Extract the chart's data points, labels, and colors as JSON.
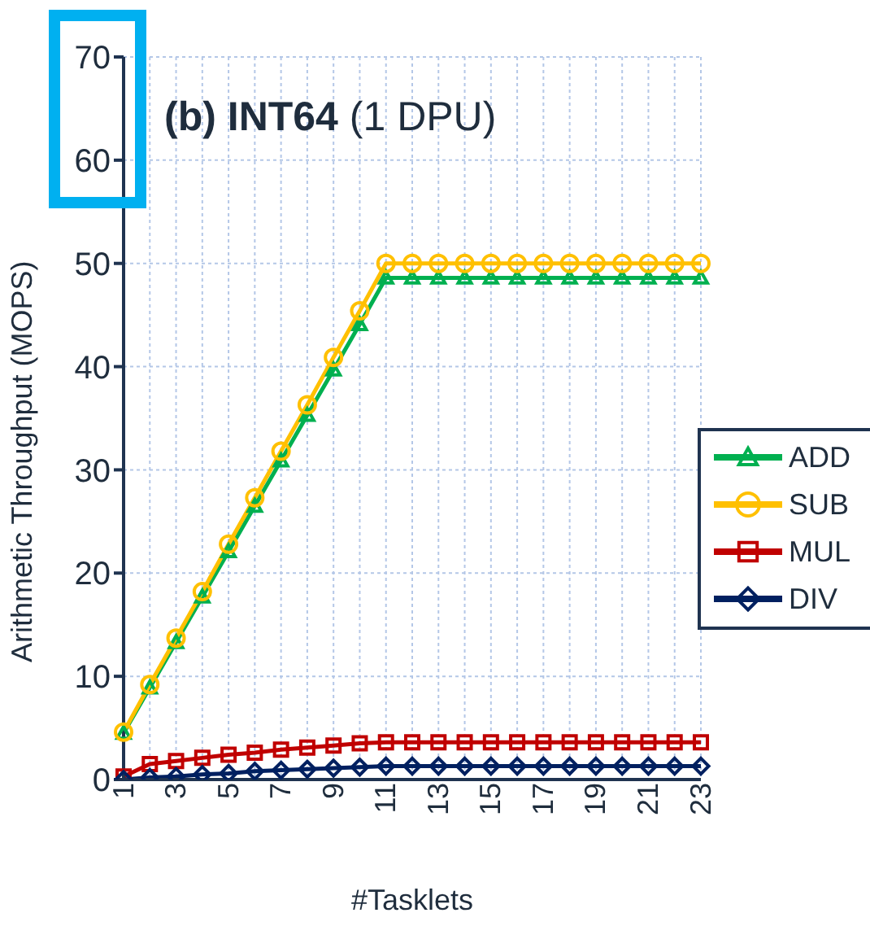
{
  "chart_data": {
    "type": "line",
    "title": "(b) INT64",
    "subtitle": "(1 DPU)",
    "xlabel": "#Tasklets",
    "ylabel": "Arithmetic Throughput (MOPS)",
    "categories": [
      "1",
      null,
      "3",
      null,
      "5",
      null,
      "7",
      null,
      "9",
      null,
      "11",
      null,
      "13",
      null,
      "15",
      null,
      "17",
      null,
      "19",
      null,
      "21",
      null,
      "23"
    ],
    "series": [
      {
        "name": "ADD",
        "color": "#00b050",
        "marker": "triangle",
        "values": [
          4.5,
          8.9,
          13.3,
          17.7,
          22.1,
          26.5,
          30.9,
          35.3,
          39.7,
          44.1,
          48.6,
          48.6,
          48.6,
          48.6,
          48.6,
          48.6,
          48.6,
          48.6,
          48.6,
          48.6,
          48.6,
          48.6,
          48.6
        ]
      },
      {
        "name": "SUB",
        "color": "#ffc000",
        "marker": "circle",
        "values": [
          4.6,
          9.2,
          13.7,
          18.2,
          22.8,
          27.3,
          31.8,
          36.3,
          40.9,
          45.4,
          50,
          50,
          50,
          50,
          50,
          50,
          50,
          50,
          50,
          50,
          50,
          50,
          50
        ]
      },
      {
        "name": "MUL",
        "color": "#c00000",
        "marker": "square",
        "values": [
          0.3,
          1.5,
          1.8,
          2.1,
          2.4,
          2.6,
          2.9,
          3.1,
          3.3,
          3.5,
          3.6,
          3.6,
          3.6,
          3.6,
          3.6,
          3.6,
          3.6,
          3.6,
          3.6,
          3.6,
          3.6,
          3.6,
          3.6
        ]
      },
      {
        "name": "DIV",
        "color": "#002060",
        "marker": "diamond",
        "values": [
          0,
          0.2,
          0.3,
          0.5,
          0.6,
          0.8,
          0.9,
          1.0,
          1.1,
          1.2,
          1.3,
          1.3,
          1.3,
          1.3,
          1.3,
          1.3,
          1.3,
          1.3,
          1.3,
          1.3,
          1.3,
          1.3,
          1.3
        ]
      }
    ],
    "ylim": [
      0,
      70
    ],
    "yticks": [
      0,
      10,
      20,
      30,
      40,
      50,
      60,
      70
    ],
    "grid": true,
    "legend": "right",
    "line_style": "solid"
  }
}
